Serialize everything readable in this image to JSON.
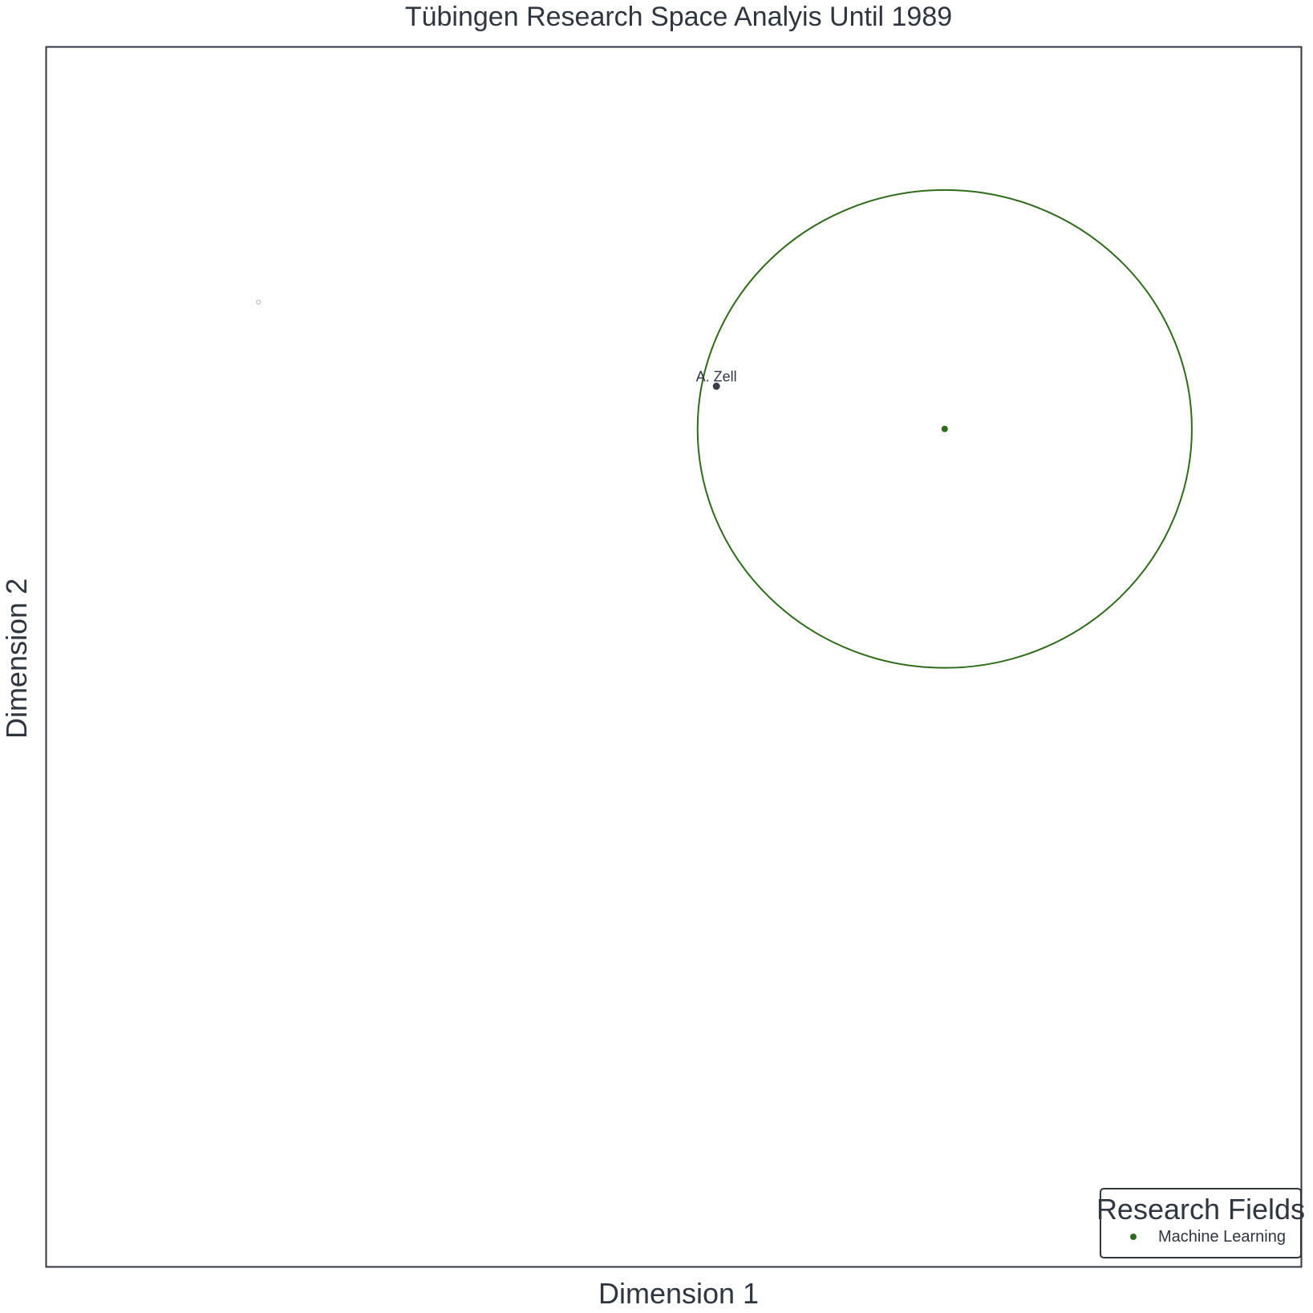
{
  "chart_data": {
    "type": "scatter",
    "title": "Tübingen Research Space Analyis Until 1989",
    "xlabel": "Dimension 1",
    "ylabel": "Dimension 2",
    "xlim": [
      0,
      100
    ],
    "ylim": [
      0,
      100
    ],
    "grid": false,
    "legend": {
      "title": "Research Fields",
      "placement": "bottom-right",
      "entries": [
        {
          "name": "Machine Learning",
          "color": "#2e6b1a"
        }
      ]
    },
    "series": [
      {
        "name": "Machine Learning",
        "color": "#2e6b1a",
        "points": [
          {
            "x": 71.6,
            "y": 68.7
          }
        ],
        "region": {
          "cx": 71.6,
          "cy": 68.7,
          "rx": 19.7,
          "ry": 19.6
        }
      }
    ],
    "annotated_points": [
      {
        "label": "A. Zell",
        "x": 53.4,
        "y": 72.2,
        "color": "#3a3f47"
      }
    ],
    "faint_points": [
      {
        "x": 16.9,
        "y": 79.1,
        "color": "#c8c8c8"
      }
    ]
  }
}
